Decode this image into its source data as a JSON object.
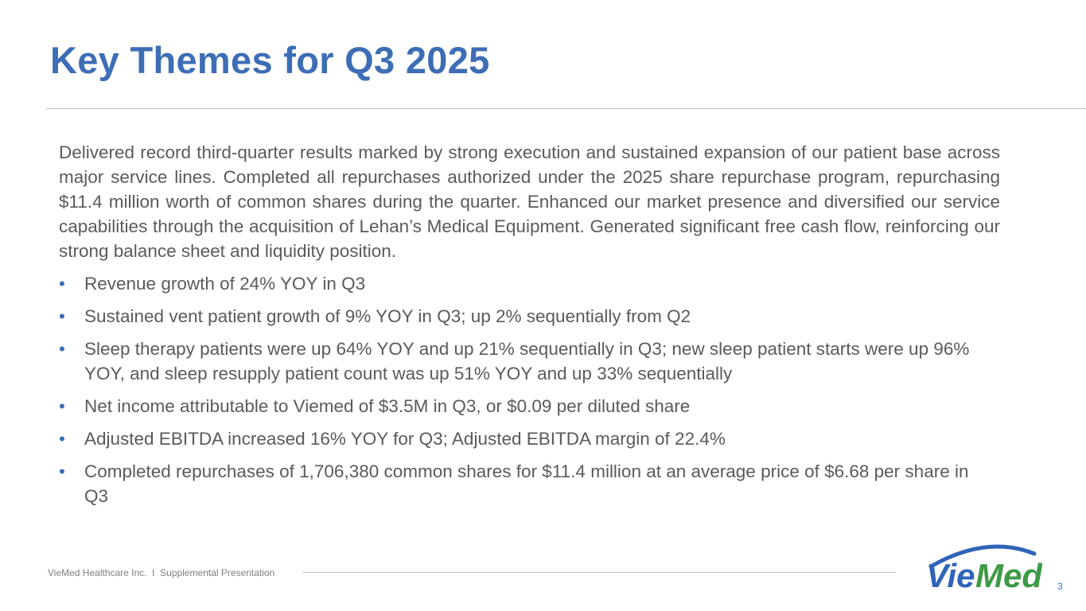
{
  "header": {
    "title": "Key Themes for Q3 2025"
  },
  "main": {
    "paragraph": "Delivered record third-quarter results marked by strong execution and sustained expansion of our patient base across major service lines. Completed all repurchases authorized under the 2025 share repurchase program, repurchasing $11.4 million worth of common shares during the quarter. Enhanced our market presence and diversified our service capabilities through the acquisition of Lehan’s Medical Equipment. Generated significant free cash flow, reinforcing our strong balance sheet and liquidity position.",
    "bullet_glyph": "•",
    "bullets": [
      "Revenue growth of 24% YOY in Q3",
      "Sustained vent patient growth of 9% YOY in Q3; up 2% sequentially from Q2",
      "Sleep therapy patients were up 64% YOY and up 21% sequentially in Q3; new sleep patient starts were up 96% YOY, and sleep resupply patient count was up 51% YOY and up 33% sequentially",
      "Net income attributable to Viemed of $3.5M in Q3, or $0.09 per diluted share",
      "Adjusted EBITDA increased 16% YOY for Q3; Adjusted EBITDA margin of 22.4%",
      "Completed repurchases of 1,706,380 common shares for $11.4 million at an average price of $6.68 per share in Q3"
    ]
  },
  "footer": {
    "text": "VieMed Healthcare Inc.  I  Supplemental Presentation",
    "page_number": "3",
    "logo_text": "VieMed"
  },
  "colors": {
    "accent": "#3d6db5",
    "logo_green": "#3d9a45",
    "text": "#5a5a5a"
  }
}
